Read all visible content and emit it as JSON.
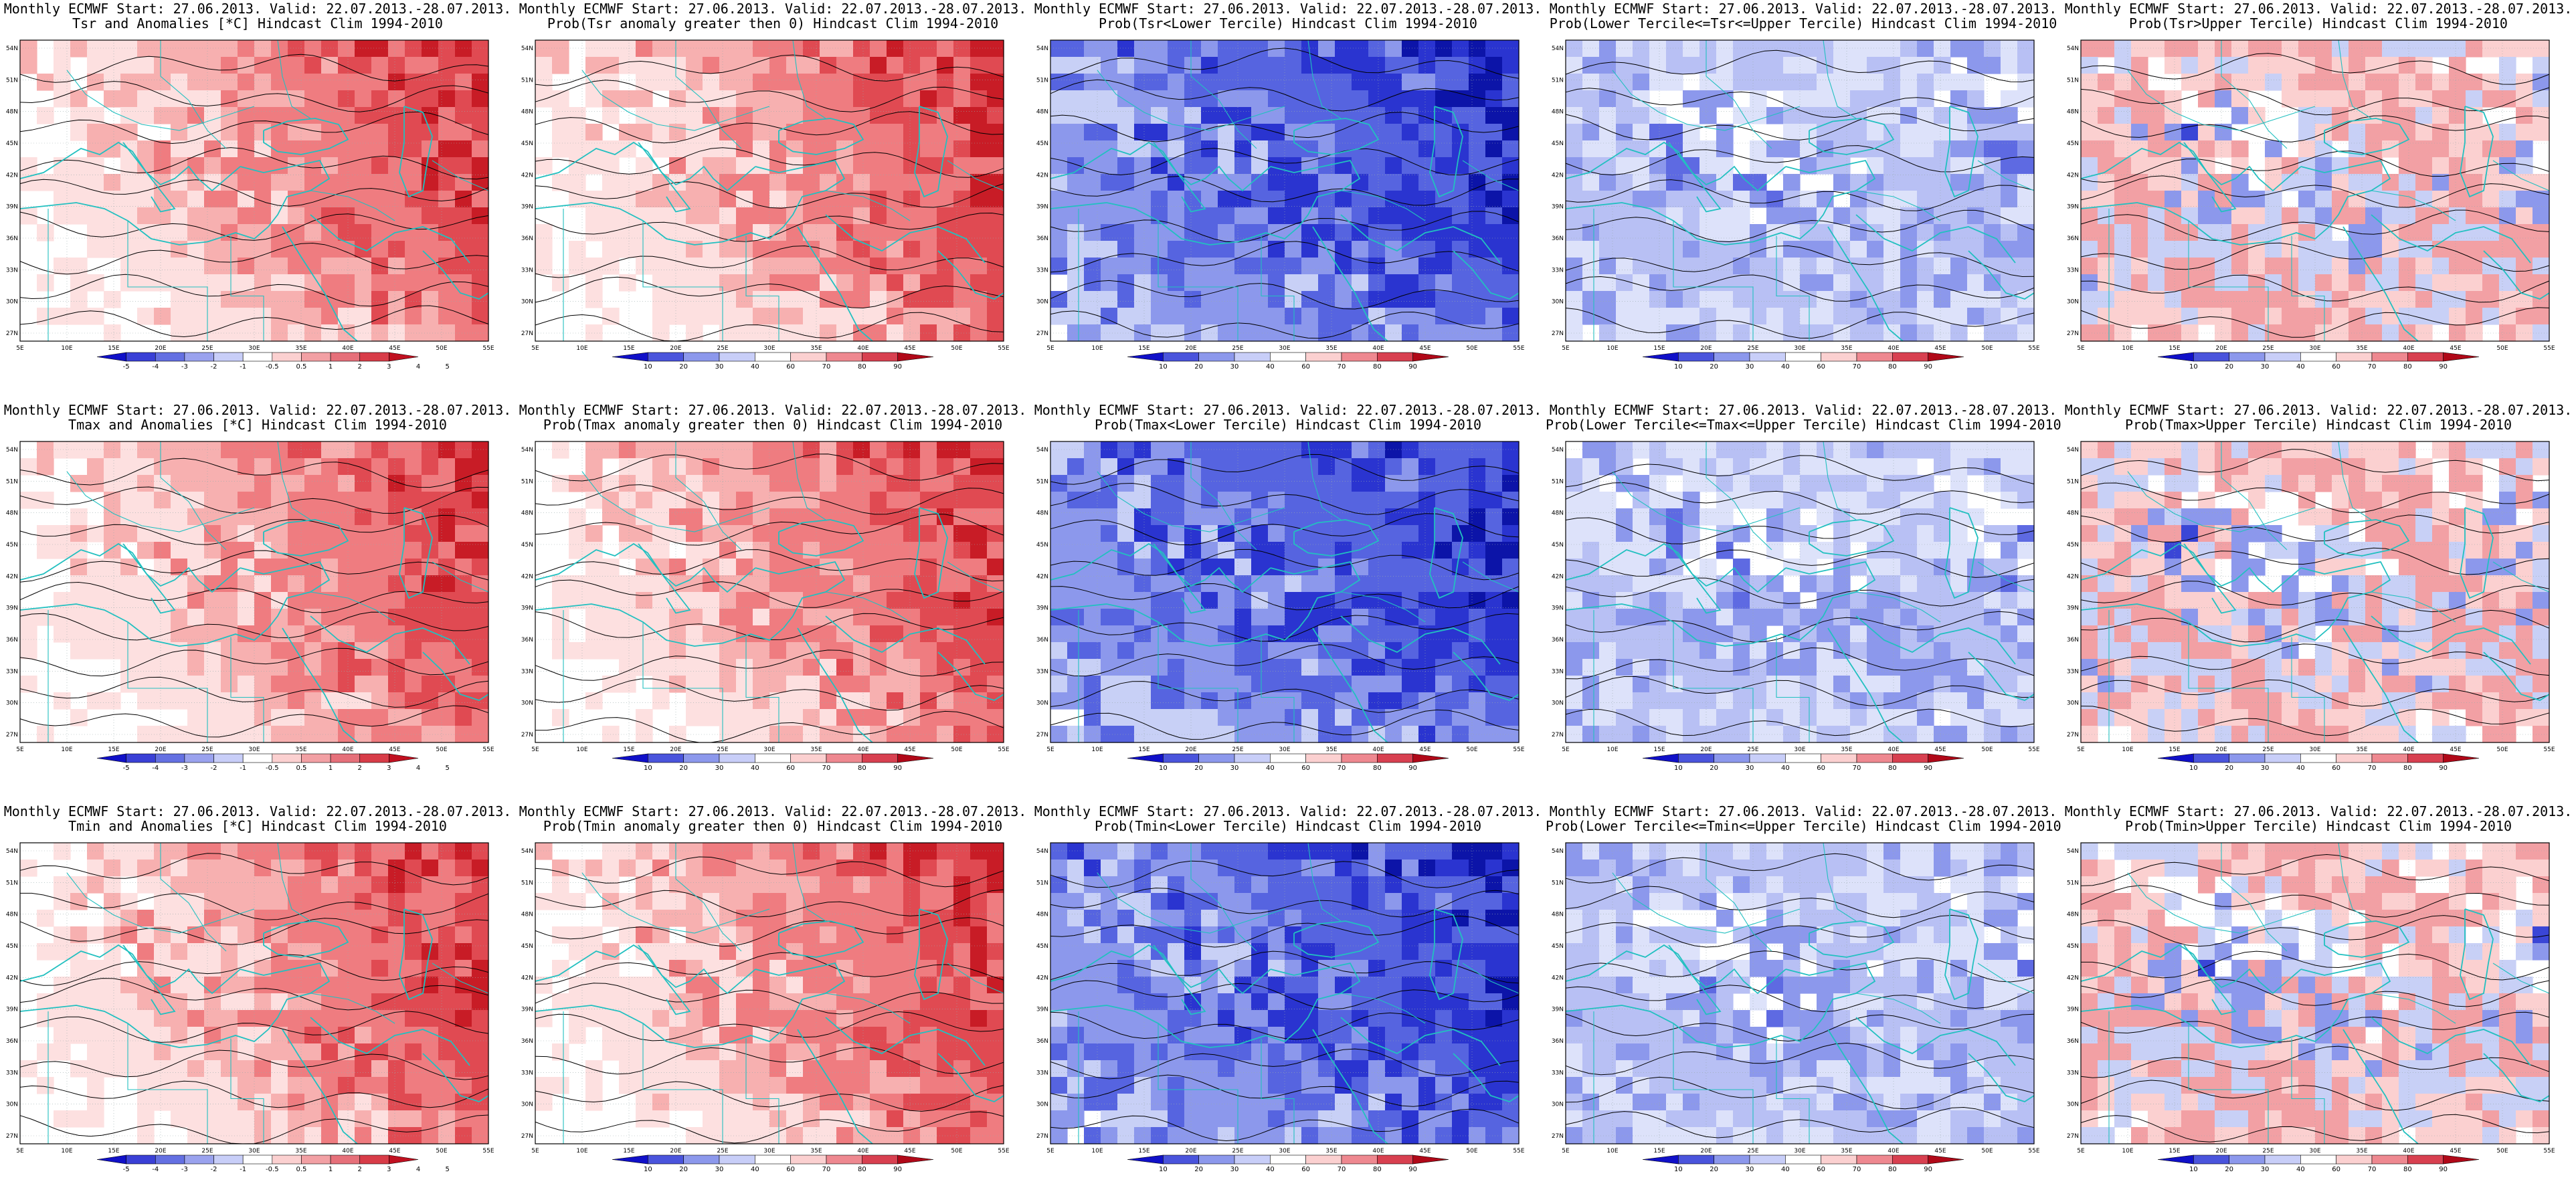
{
  "header_line": "Monthly ECMWF Start: 27.06.2013. Valid: 22.07.2013.-28.07.2013.",
  "longitude_ticks": [
    "5E",
    "10E",
    "15E",
    "20E",
    "25E",
    "30E",
    "35E",
    "40E",
    "45E",
    "50E",
    "55E"
  ],
  "latitude_ticks": [
    "54N",
    "51N",
    "48N",
    "45N",
    "42N",
    "39N",
    "36N",
    "33N",
    "30N",
    "27N"
  ],
  "anomaly_scale": [
    "-5",
    "-4",
    "-3",
    "-2",
    "-1",
    "-0.5",
    "0.5",
    "1",
    "2",
    "3",
    "4",
    "5"
  ],
  "probability_scale": [
    "10",
    "20",
    "30",
    "40",
    "60",
    "70",
    "80",
    "90"
  ],
  "colors": {
    "coast": "#22c0c0",
    "contour": "#000000",
    "red_strong": "#d01020",
    "red_light": "#f7b0b0",
    "blue_strong": "#1020c8",
    "blue_light": "#b8c0f4"
  },
  "panels": [
    {
      "subtitle": "Tsr and Anomalies [*C] Hindcast Clim 1994-2010",
      "scale": "anomaly",
      "theme": "warm"
    },
    {
      "subtitle": "Prob(Tsr anomaly greater then 0) Hindcast Clim 1994-2010",
      "scale": "probability",
      "theme": "warm"
    },
    {
      "subtitle": "Prob(Tsr<Lower Tercile) Hindcast Clim 1994-2010",
      "scale": "probability",
      "theme": "cold"
    },
    {
      "subtitle": "Prob(Lower Tercile<=Tsr<=Upper Tercile) Hindcast Clim 1994-2010",
      "scale": "probability",
      "theme": "mid"
    },
    {
      "subtitle": "Prob(Tsr>Upper Tercile) Hindcast Clim 1994-2010",
      "scale": "probability",
      "theme": "mixed"
    },
    {
      "subtitle": "Tmax and Anomalies [*C] Hindcast Clim 1994-2010",
      "scale": "anomaly",
      "theme": "warm"
    },
    {
      "subtitle": "Prob(Tmax anomaly greater then 0) Hindcast Clim 1994-2010",
      "scale": "probability",
      "theme": "warm"
    },
    {
      "subtitle": "Prob(Tmax<Lower Tercile) Hindcast Clim 1994-2010",
      "scale": "probability",
      "theme": "cold"
    },
    {
      "subtitle": "Prob(Lower Tercile<=Tmax<=Upper Tercile) Hindcast Clim 1994-2010",
      "scale": "probability",
      "theme": "mid"
    },
    {
      "subtitle": "Prob(Tmax>Upper Tercile) Hindcast Clim 1994-2010",
      "scale": "probability",
      "theme": "mixed"
    },
    {
      "subtitle": "Tmin and Anomalies [*C] Hindcast Clim 1994-2010",
      "scale": "anomaly",
      "theme": "warm"
    },
    {
      "subtitle": "Prob(Tmin anomaly greater then 0) Hindcast Clim 1994-2010",
      "scale": "probability",
      "theme": "warm"
    },
    {
      "subtitle": "Prob(Tmin<Lower Tercile) Hindcast Clim 1994-2010",
      "scale": "probability",
      "theme": "cold"
    },
    {
      "subtitle": "Prob(Lower Tercile<=Tmin<=Upper Tercile) Hindcast Clim 1994-2010",
      "scale": "probability",
      "theme": "mid"
    },
    {
      "subtitle": "Prob(Tmin>Upper Tercile) Hindcast Clim 1994-2010",
      "scale": "probability",
      "theme": "mixed"
    }
  ]
}
